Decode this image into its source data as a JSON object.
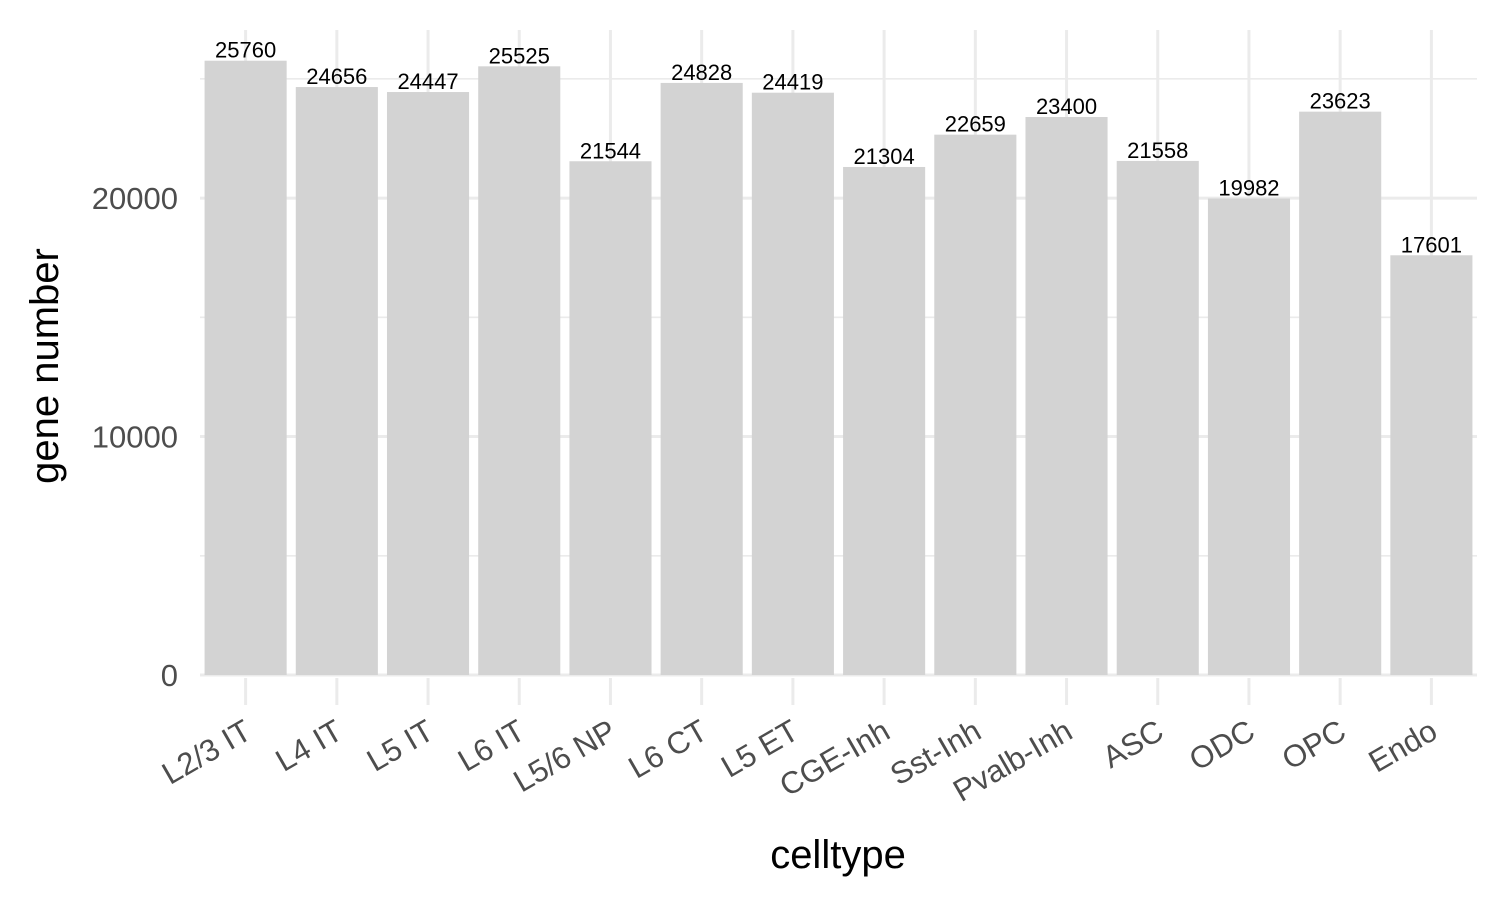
{
  "chart_data": {
    "type": "bar",
    "title": "",
    "xlabel": "celltype",
    "ylabel": "gene number",
    "categories": [
      "L2/3 IT",
      "L4 IT",
      "L5 IT",
      "L6 IT",
      "L5/6 NP",
      "L6 CT",
      "L5 ET",
      "CGE-Inh",
      "Sst-Inh",
      "Pvalb-Inh",
      "ASC",
      "ODC",
      "OPC",
      "Endo"
    ],
    "values": [
      25760,
      24656,
      24447,
      25525,
      21544,
      24828,
      24419,
      21304,
      22659,
      23400,
      21558,
      19982,
      23623,
      17601
    ],
    "value_labels": [
      "25760",
      "24656",
      "24447",
      "25525",
      "21544",
      "24828",
      "24419",
      "21304",
      "22659",
      "23400",
      "21558",
      "19982",
      "23623",
      "17601"
    ],
    "yticks": [
      0,
      10000,
      20000
    ],
    "ytick_labels": [
      "0",
      "10000",
      "20000"
    ],
    "ylim": [
      0,
      27048
    ],
    "grid": true,
    "bar_color": "#d3d3d3",
    "x_tick_rotation_deg": 30
  }
}
